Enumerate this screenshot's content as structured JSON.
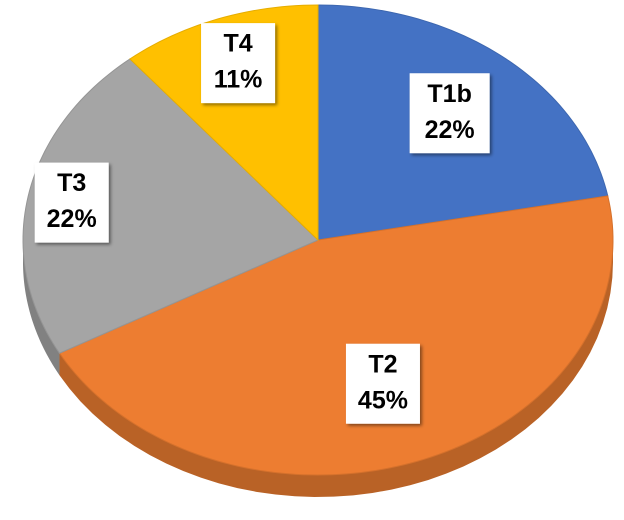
{
  "chart_data": {
    "type": "pie",
    "categories": [
      "T1b",
      "T2",
      "T3",
      "T4"
    ],
    "values": [
      22,
      45,
      22,
      11
    ],
    "value_labels": [
      "22%",
      "45%",
      "22%",
      "11%"
    ],
    "colors": [
      "#4472c4",
      "#ed7d31",
      "#a5a5a5",
      "#ffc000"
    ]
  }
}
